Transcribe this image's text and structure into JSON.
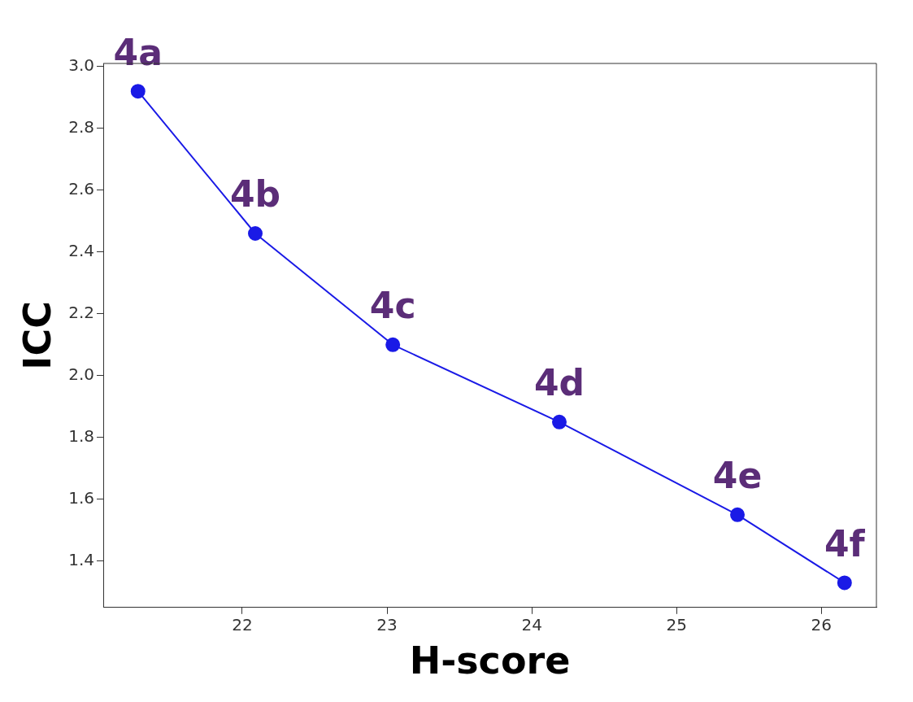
{
  "chart_data": {
    "type": "line",
    "xlabel": "H-score",
    "ylabel": "ICC",
    "x": [
      21.28,
      22.09,
      23.04,
      24.19,
      25.42,
      26.16
    ],
    "series": [
      {
        "color": "#1a1ae6",
        "values": [
          2.92,
          2.46,
          2.1,
          1.85,
          1.55,
          1.33
        ]
      }
    ],
    "xlim": [
      21.04,
      26.38
    ],
    "xticks": [
      22,
      23,
      24,
      25,
      26
    ],
    "ylim": [
      1.25,
      3.01
    ],
    "yticks": [
      1.4,
      1.6,
      1.8,
      {
        "value": 2,
        "label": "2.0"
      },
      2.2,
      2.4,
      2.6,
      2.8,
      {
        "value": 3,
        "label": "3.0"
      }
    ],
    "grid": false,
    "legend": false,
    "marker": "circle",
    "line_style": "solid",
    "annotations": [
      {
        "text": "4a",
        "x": 21.28,
        "y": 2.92
      },
      {
        "text": "4b",
        "x": 22.09,
        "y": 2.46
      },
      {
        "text": "4c",
        "x": 23.04,
        "y": 2.1
      },
      {
        "text": "4d",
        "x": 24.19,
        "y": 1.85
      },
      {
        "text": "4e",
        "x": 25.42,
        "y": 1.55
      },
      {
        "text": "4f",
        "x": 26.16,
        "y": 1.33
      }
    ]
  }
}
